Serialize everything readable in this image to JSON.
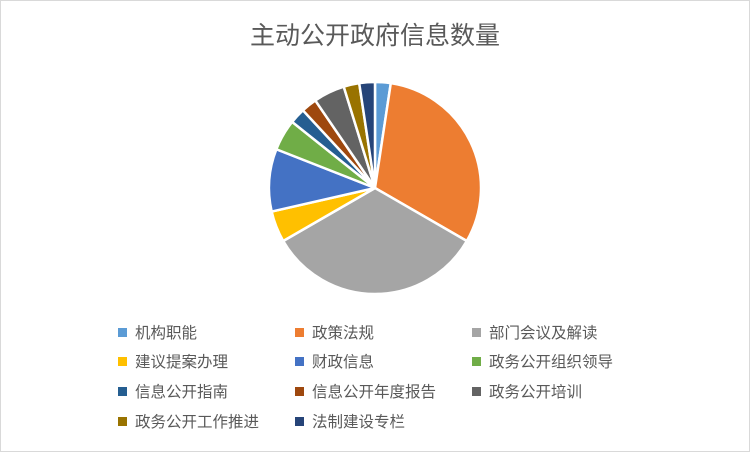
{
  "chart_data": {
    "type": "pie",
    "title": "主动公开政府信息数量",
    "legend_position": "bottom",
    "start_angle": "top, clockwise",
    "categories": [
      "机构职能",
      "政策法规",
      "部门会议及解读",
      "建议提案办理",
      "财政信息",
      "政务公开组织领导",
      "信息公开指南",
      "信息公开年度报告",
      "政务公开培训",
      "政务公开工作推进",
      "法制建设专栏"
    ],
    "values": [
      1,
      13,
      14,
      2,
      4,
      2,
      1,
      1,
      2,
      1,
      1
    ],
    "colors": [
      "#5B9BD5",
      "#ED7D31",
      "#A5A5A5",
      "#FFC000",
      "#4472C4",
      "#70AD47",
      "#255E91",
      "#9E480E",
      "#636363",
      "#997300",
      "#264478"
    ]
  }
}
